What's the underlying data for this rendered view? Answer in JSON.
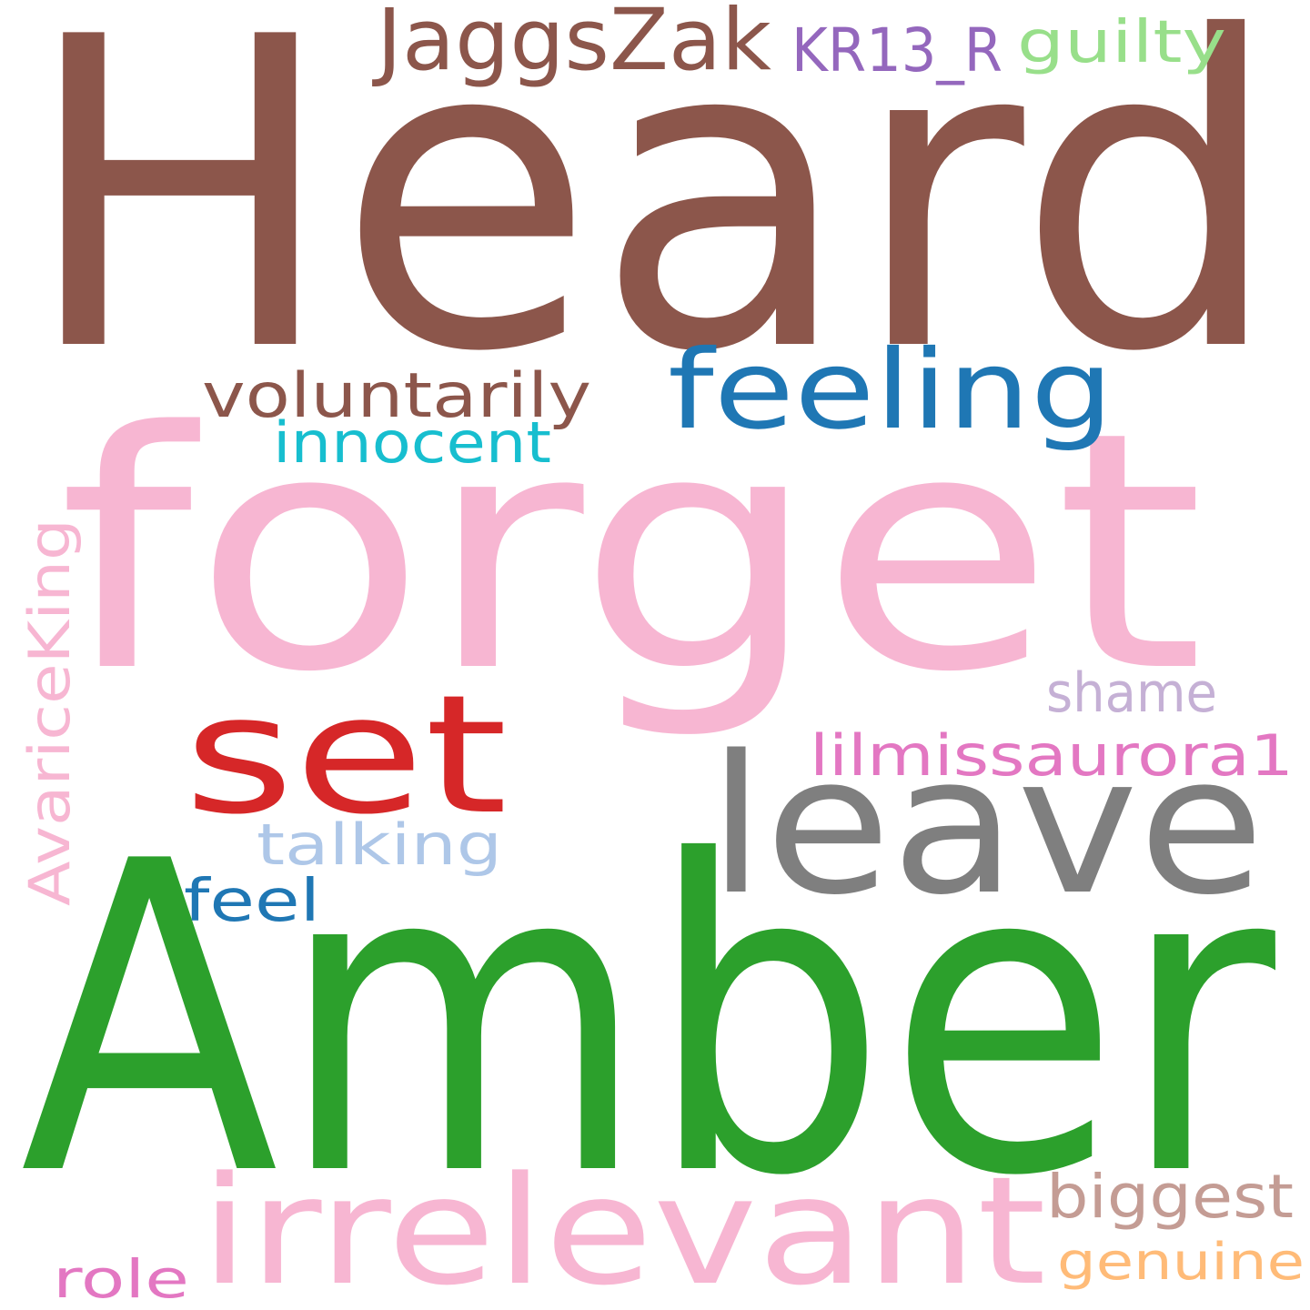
{
  "words": {
    "heard": {
      "text": "Heard",
      "color": "#8c564b"
    },
    "forget": {
      "text": "forget",
      "color": "#f7b6d2"
    },
    "amber": {
      "text": "Amber",
      "color": "#2ca02c"
    },
    "irrelevant": {
      "text": "irrelevant",
      "color": "#f7b6d2"
    },
    "leave": {
      "text": "leave",
      "color": "#7f7f7f"
    },
    "set": {
      "text": "set",
      "color": "#d62728"
    },
    "feeling": {
      "text": "feeling",
      "color": "#1f77b4"
    },
    "jaggszak": {
      "text": "JaggsZak",
      "color": "#8c564b"
    },
    "kr13_r": {
      "text": "KR13_R",
      "color": "#9467bd"
    },
    "guilty": {
      "text": "guilty",
      "color": "#98df8a"
    },
    "voluntarily": {
      "text": "voluntarily",
      "color": "#8c564b"
    },
    "innocent": {
      "text": "innocent",
      "color": "#17becf"
    },
    "avariceking": {
      "text": "AvariceKing",
      "color": "#f7b6d2"
    },
    "shame": {
      "text": "shame",
      "color": "#c5b0d5"
    },
    "lilmissaurora1": {
      "text": "lilmissaurora1",
      "color": "#e377c2"
    },
    "talking": {
      "text": "talking",
      "color": "#aec7e8"
    },
    "feel": {
      "text": "feel",
      "color": "#1f77b4"
    },
    "biggest": {
      "text": "biggest",
      "color": "#c49c94"
    },
    "genuine": {
      "text": "genuine",
      "color": "#ffbb78"
    },
    "role": {
      "text": "role",
      "color": "#e377c2"
    }
  }
}
